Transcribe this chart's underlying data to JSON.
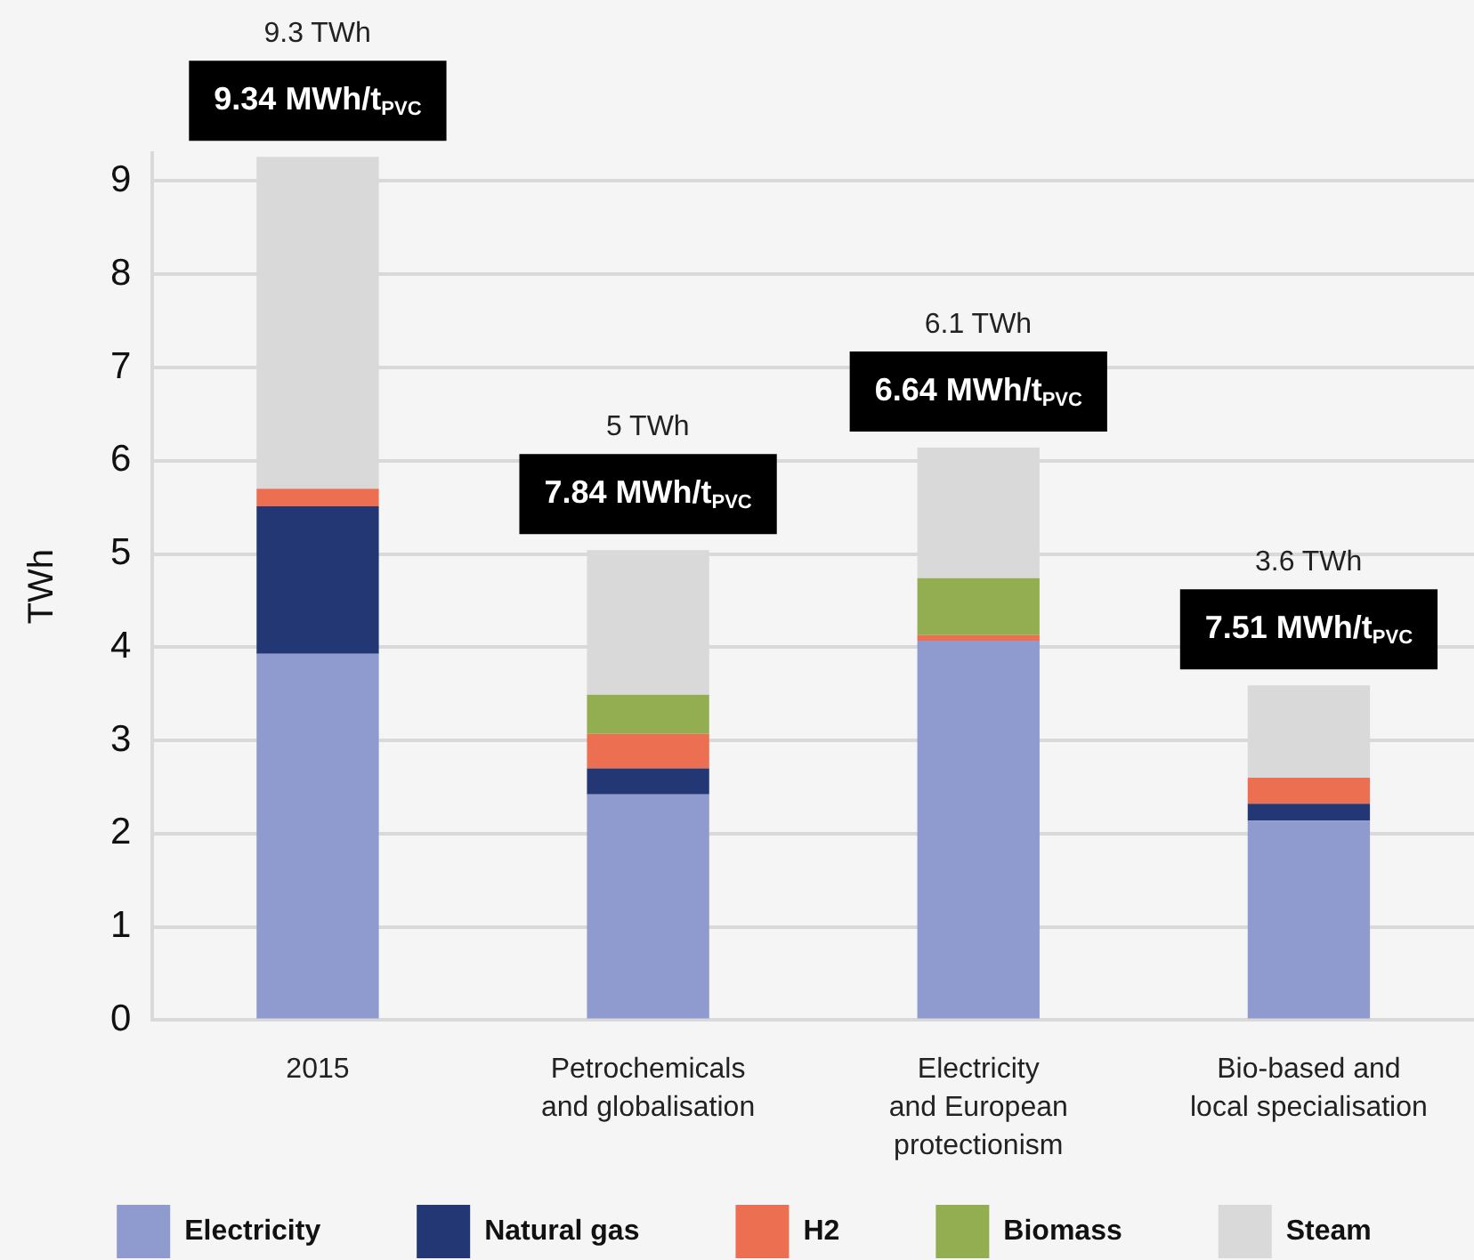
{
  "chart_data": {
    "type": "bar",
    "stacked": true,
    "ylabel": "TWh",
    "categories": [
      "2015",
      "Petrochemicals\nand globalisation",
      "Electricity\nand European\nprotectionism",
      "Bio-based and\nlocal specialisation"
    ],
    "series": [
      {
        "name": "Electricity",
        "color": "#8f9ace",
        "values": [
          3.93,
          2.42,
          4.07,
          2.14
        ]
      },
      {
        "name": "Natural gas",
        "color": "#233775",
        "values": [
          1.58,
          0.28,
          0,
          0.18
        ]
      },
      {
        "name": "H2",
        "color": "#ed6f52",
        "values": [
          0.19,
          0.37,
          0.06,
          0.28
        ]
      },
      {
        "name": "Biomass",
        "color": "#93ae51",
        "values": [
          0,
          0.42,
          0.61,
          0
        ]
      },
      {
        "name": "Steam",
        "color": "#d9d9d9",
        "values": [
          3.56,
          1.55,
          1.4,
          0.99
        ]
      }
    ],
    "ylim": [
      0,
      9.3
    ],
    "yticks": [
      0,
      1,
      2,
      3,
      4,
      5,
      6,
      7,
      8,
      9
    ],
    "annotations": [
      {
        "text": "9.34 MWh/t$_{PVC}$",
        "x": "2015",
        "y": 9.26
      },
      {
        "text": "7.84 MWh/t$_{PVC}$",
        "x": "Petrochemicals\nand globalisation",
        "y": 5.04
      },
      {
        "text": "6.64 MWh/t$_{PVC}$",
        "x": "Electricity\nand European\nprotectionism",
        "y": 6.14
      },
      {
        "text": "7.51 MWh/t$_{PVC}$",
        "x": "Bio-based and\nlocal specialisation",
        "y": 3.59
      },
      "9.3 TWh",
      "5 TWh",
      "6.1 TWh",
      "3.6 TWh"
    ],
    "grid": "y",
    "legend": "bottom"
  }
}
